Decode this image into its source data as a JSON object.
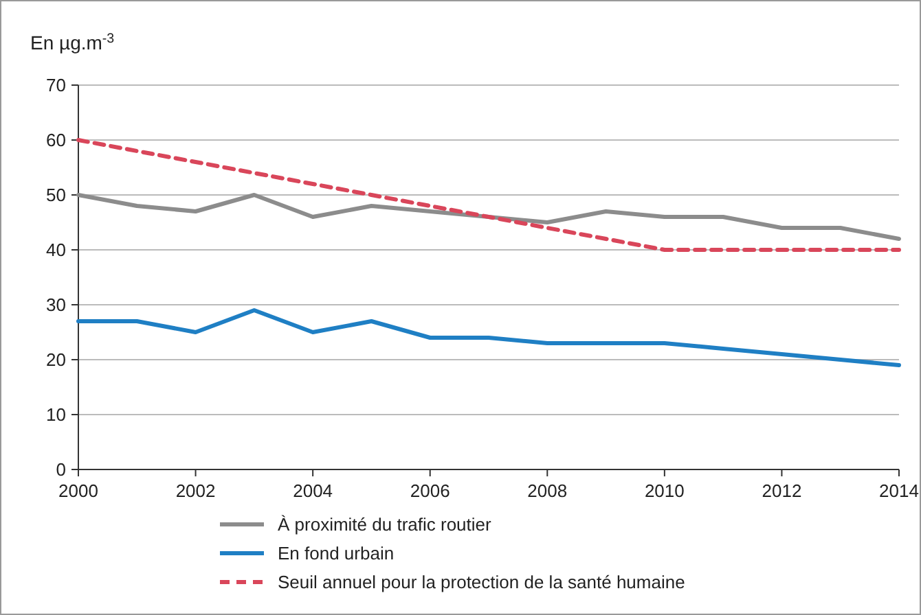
{
  "chart_data": {
    "type": "line",
    "ylabel": "En µg.m$^{-3}$",
    "x": [
      2000,
      2001,
      2002,
      2003,
      2004,
      2005,
      2006,
      2007,
      2008,
      2009,
      2010,
      2011,
      2012,
      2013,
      2014
    ],
    "series": [
      {
        "name": "À proximité du trafic routier",
        "color": "#8c8c8c",
        "values": [
          50,
          48,
          47,
          50,
          46,
          48,
          47,
          46,
          45,
          47,
          46,
          46,
          44,
          44,
          42
        ]
      },
      {
        "name": "En fond urbain",
        "color": "#1f7fc4",
        "values": [
          27,
          27,
          25,
          29,
          25,
          27,
          24,
          24,
          23,
          23,
          23,
          22,
          21,
          20,
          19
        ]
      },
      {
        "name": "Seuil annuel pour la protection de la santé humaine",
        "color": "#d9465a",
        "line_style": "dashed",
        "values": [
          60,
          58,
          56,
          54,
          52,
          50,
          48,
          46,
          44,
          42,
          40,
          40,
          40,
          40,
          40
        ]
      }
    ],
    "xlim": [
      2000,
      2014
    ],
    "xticks": [
      2000,
      2002,
      2004,
      2006,
      2008,
      2010,
      2012,
      2014
    ],
    "ylim": [
      0,
      70
    ],
    "yticks": [
      0,
      10,
      20,
      30,
      40,
      50,
      60,
      70
    ],
    "grid": "y",
    "legend": "bottom",
    "marker": "none"
  }
}
